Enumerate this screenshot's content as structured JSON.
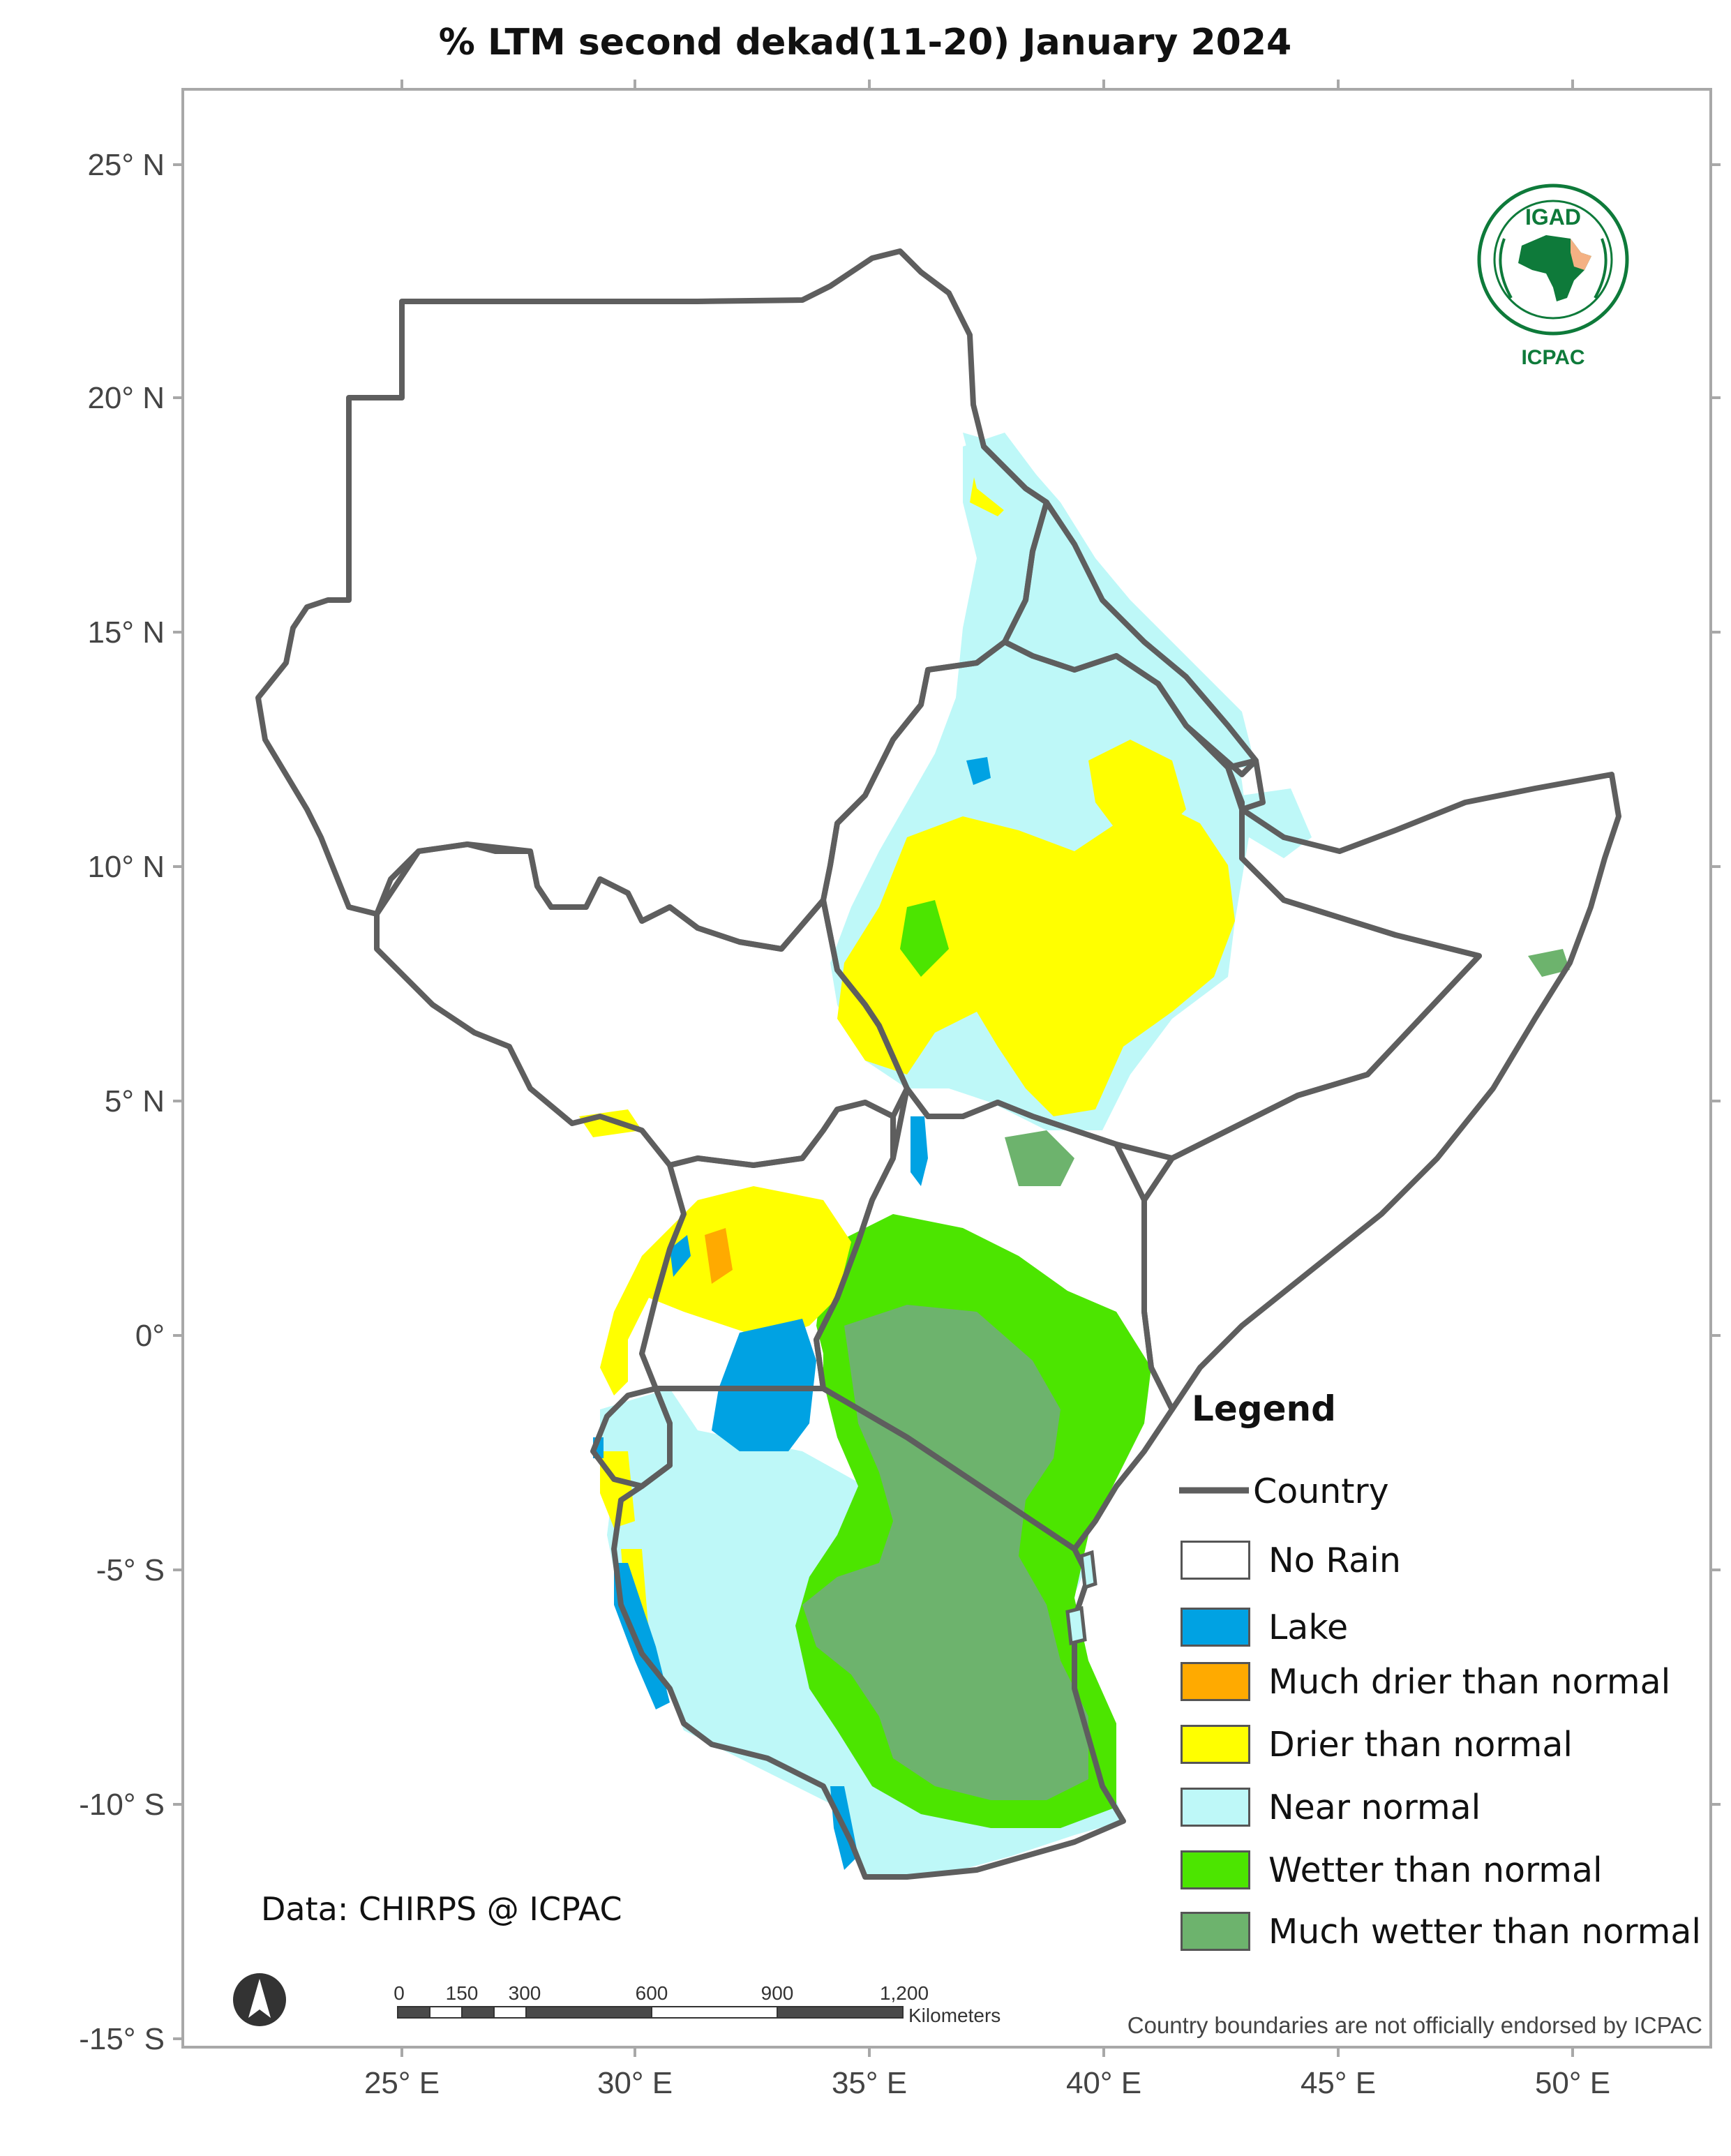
{
  "title": "% LTM  second dekad(11-20) January 2024",
  "y_axis_labels": [
    "25° N",
    "20° N",
    "15° N",
    "10° N",
    "5° N",
    "0°",
    "-5° S",
    "-10° S",
    "-15° S"
  ],
  "x_axis_labels": [
    "25° E",
    "30° E",
    "35° E",
    "40° E",
    "45° E",
    "50° E"
  ],
  "legend": {
    "title": "Legend",
    "country_label": "Country",
    "items": [
      {
        "label": "No Rain",
        "color": "#ffffff"
      },
      {
        "label": "Lake",
        "color": "#00a2e3"
      },
      {
        "label": "Much drier than normal",
        "color": "#ffaa00"
      },
      {
        "label": "Drier than normal",
        "color": "#ffff00"
      },
      {
        "label": "Near normal",
        "color": "#bef8f8"
      },
      {
        "label": "Wetter than normal",
        "color": "#4ce500"
      },
      {
        "label": "Much wetter than normal",
        "color": "#6db36d"
      }
    ]
  },
  "credit": "Data: CHIRPS @ ICPAC",
  "scale_bar": {
    "ticks": [
      "0",
      "150",
      "300",
      "600",
      "900",
      "1,200"
    ],
    "unit": "Kilometers"
  },
  "disclaimer": "Country boundaries are not officially endorsed by ICPAC",
  "logo": {
    "top_text": "IGAD",
    "bottom_text": "ICPAC"
  },
  "north_arrow_icon": "north-arrow-icon"
}
